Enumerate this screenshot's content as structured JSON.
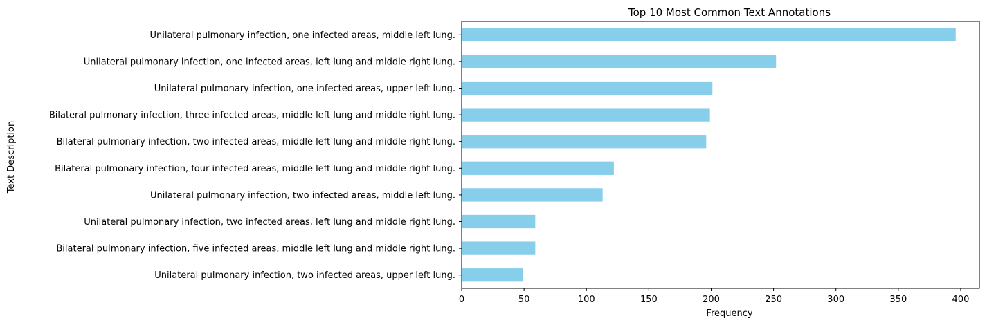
{
  "chart_data": {
    "type": "bar",
    "orientation": "horizontal",
    "title": "Top 10 Most Common Text Annotations",
    "xlabel": "Frequency",
    "ylabel": "Text Description",
    "xlim": [
      0,
      415
    ],
    "xticks": [
      0,
      50,
      100,
      150,
      200,
      250,
      300,
      350,
      400
    ],
    "grid": false,
    "bar_color": "#87ceeb",
    "categories": [
      "Unilateral pulmonary infection, one infected areas, middle left lung.",
      "Unilateral pulmonary infection, one infected areas, left lung and middle right lung.",
      "Unilateral pulmonary infection, one infected areas, upper left lung.",
      "Bilateral pulmonary infection, three infected areas, middle left lung and middle right lung.",
      "Bilateral pulmonary infection, two infected areas, middle left lung and middle right lung.",
      "Bilateral pulmonary infection, four infected areas, middle left lung and middle right lung.",
      "Unilateral pulmonary infection, two infected areas, middle left lung.",
      "Unilateral pulmonary infection, two infected areas, left lung and middle right lung.",
      "Bilateral pulmonary infection, five infected areas, middle left lung and middle right lung.",
      "Unilateral pulmonary infection, two infected areas, upper left lung."
    ],
    "values": [
      396,
      252,
      201,
      199,
      196,
      122,
      113,
      59,
      59,
      49
    ]
  }
}
